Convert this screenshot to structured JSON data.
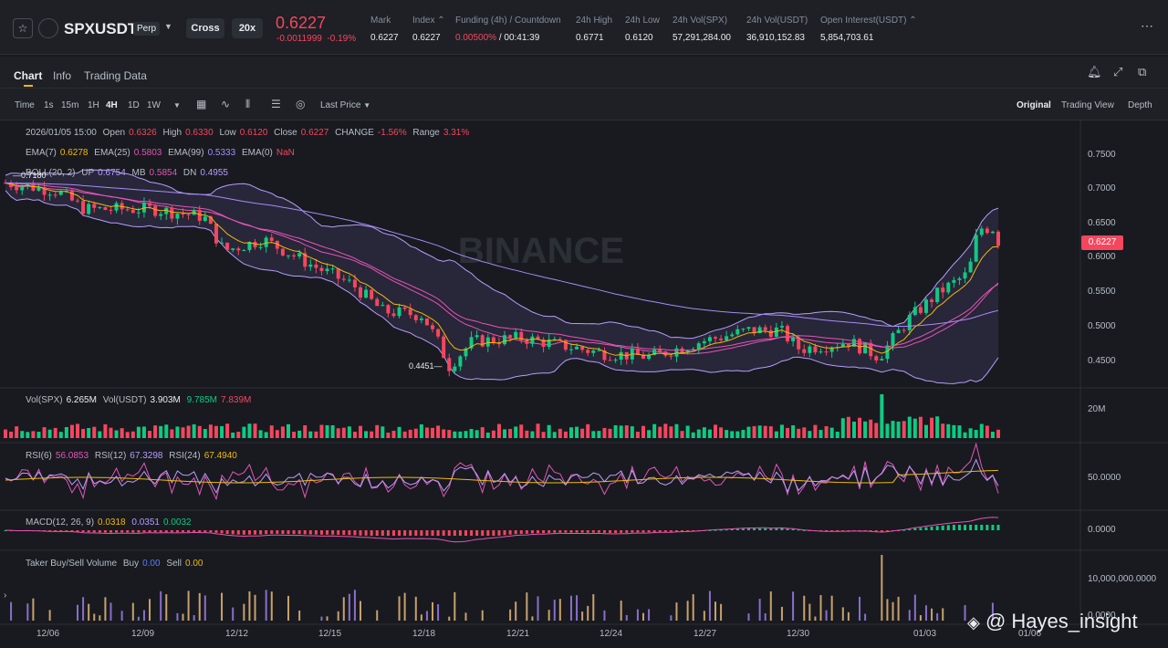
{
  "header": {
    "symbol": "SPXUSDT",
    "badge": "Perp",
    "margin_mode": "Cross",
    "leverage": "20x",
    "last_price": "0.6227",
    "change": "-0.0011999",
    "change_pct": "-0.19%",
    "stats": [
      {
        "label": "Mark",
        "value": "0.6227"
      },
      {
        "label": "Index",
        "value": "0.6227"
      },
      {
        "label": "Funding (4h) / Countdown",
        "value_red": "0.00500%",
        "value": " / 00:41:39"
      },
      {
        "label": "24h High",
        "value": "0.6771"
      },
      {
        "label": "24h Low",
        "value": "0.6120"
      },
      {
        "label": "24h Vol(SPX)",
        "value": "57,291,284.00"
      },
      {
        "label": "24h Vol(USDT)",
        "value": "36,910,152.83"
      },
      {
        "label": "Open Interest(USDT)",
        "value": "5,854,703.61"
      }
    ]
  },
  "tabs": [
    "Chart",
    "Info",
    "Trading Data"
  ],
  "toolbar": {
    "time_label": "Time",
    "intervals": [
      "1s",
      "15m",
      "1H",
      "4H",
      "1D",
      "1W"
    ],
    "active_interval": "4H",
    "price_type": "Last Price",
    "views": [
      "Original",
      "Trading View",
      "Depth"
    ]
  },
  "legends": {
    "ohlc": {
      "date": "2026/01/05 15:00",
      "open_l": "Open",
      "open": "0.6326",
      "high_l": "High",
      "high": "0.6330",
      "low_l": "Low",
      "low": "0.6120",
      "close_l": "Close",
      "close": "0.6227",
      "change_l": "CHANGE",
      "change": "-1.56%",
      "range_l": "Range",
      "range": "3.31%"
    },
    "ema": {
      "e7_l": "EMA(7)",
      "e7": "0.6278",
      "e25_l": "EMA(25)",
      "e25": "0.5803",
      "e99_l": "EMA(99)",
      "e99": "0.5333",
      "e0_l": "EMA(0)",
      "e0": "NaN"
    },
    "boll": {
      "l": "BOLL(20, 2)",
      "up_l": "UP",
      "up": "0.6754",
      "mb_l": "MB",
      "mb": "0.5854",
      "dn_l": "DN",
      "dn": "0.4955"
    },
    "vol": {
      "l1": "Vol(SPX)",
      "v1": "6.265M",
      "l2": "Vol(USDT)",
      "v2": "3.903M",
      "v3": "9.785M",
      "v4": "7.839M"
    },
    "rsi": {
      "l6": "RSI(6)",
      "v6": "56.0853",
      "l12": "RSI(12)",
      "v12": "67.3298",
      "l24": "RSI(24)",
      "v24": "67.4940"
    },
    "macd": {
      "l": "MACD(12, 26, 9)",
      "v1": "0.0318",
      "v2": "0.0351",
      "v3": "0.0032"
    },
    "taker": {
      "l": "Taker Buy/Sell Volume",
      "buy_l": "Buy",
      "buy": "0.00",
      "sell_l": "Sell",
      "sell": "0.00"
    }
  },
  "price_axis": [
    "0.7500",
    "0.7000",
    "0.6500",
    "0.6000",
    "0.5500",
    "0.5000",
    "0.4500"
  ],
  "vol_axis": "20M",
  "rsi_axis": "50.0000",
  "macd_axis": "0.0000",
  "taker_axis": [
    "10,000,000.0000",
    "0.0000"
  ],
  "date_axis": [
    "12/06",
    "12/09",
    "12/12",
    "12/15",
    "12/18",
    "12/21",
    "12/24",
    "12/27",
    "12/30",
    "01/03",
    "01/06"
  ],
  "price_tag": "0.6227",
  "marker_high": "0.7180",
  "marker_low": "0.4451",
  "watermark_brand": "BINANCE",
  "credit": "@ Hayes_insight",
  "colors": {
    "up": "#0ecb81",
    "down": "#f6465d",
    "ema7": "#f0b90b",
    "ema25": "#e455b5",
    "ema99": "#a78bfa",
    "boll": "#b89dfb",
    "accent": "#f0b90b"
  },
  "chart_data": {
    "type": "candlestick",
    "interval": "4H",
    "ylim": [
      0.43,
      0.78
    ],
    "key_points": [
      {
        "date": "12/06",
        "close": 0.69
      },
      {
        "date": "12/09",
        "close": 0.665
      },
      {
        "date": "12/12",
        "close": 0.625
      },
      {
        "date": "12/15",
        "close": 0.545
      },
      {
        "date": "12/18",
        "close": 0.47
      },
      {
        "date": "12/21",
        "close": 0.495
      },
      {
        "date": "12/24",
        "close": 0.475
      },
      {
        "date": "12/27",
        "close": 0.505
      },
      {
        "date": "12/30",
        "close": 0.49
      },
      {
        "date": "01/03",
        "close": 0.58
      },
      {
        "date": "01/05",
        "close": 0.6227
      }
    ],
    "high_marker": 0.718,
    "low_marker": 0.4451
  }
}
